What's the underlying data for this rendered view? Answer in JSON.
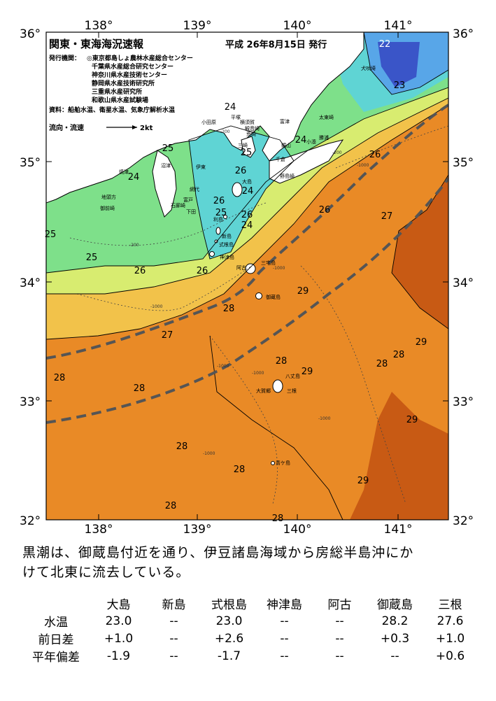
{
  "header": {
    "title": "関東・東海海況速報",
    "issue_date": "平成 26年8月15日 発行",
    "publisher_label": "発行機関：",
    "publishers": [
      "◎東京都島しょ農林水産総合センター",
      "千葉県水産総合研究センター",
      "神奈川県水産技術センター",
      "静岡県水産技術研究所",
      "三重県水産研究所",
      "和歌山県水産試験場"
    ],
    "data_sources": "資料：船舶水温、衛星水温、気象庁解析水温",
    "flow_legend_label": "流向・流速",
    "flow_legend_unit": "2kt"
  },
  "axes": {
    "lon_labels": [
      "138°",
      "139°",
      "140°",
      "141°"
    ],
    "lat_labels": [
      "36°",
      "35°",
      "34°",
      "33°",
      "32°"
    ]
  },
  "isotherm_labels": [
    "24",
    "25",
    "24",
    "26",
    "24",
    "25",
    "24",
    "26",
    "26",
    "25",
    "24",
    "26",
    "23",
    "26",
    "27",
    "25",
    "25",
    "26",
    "26",
    "28",
    "29",
    "27",
    "28",
    "28",
    "29",
    "28",
    "28",
    "29",
    "29",
    "28",
    "28",
    "29",
    "28",
    "22"
  ],
  "place_names": {
    "coast": [
      "小田原",
      "平塚",
      "横須賀",
      "観音崎",
      "荒崎",
      "富津",
      "三崎",
      "鋸山",
      "千倉",
      "野島崎",
      "小湊",
      "勝浦",
      "太東崎",
      "犬吠埼",
      "沼津",
      "伊東",
      "焼津",
      "網代",
      "下田",
      "石廊崎",
      "御前崎",
      "地頭方",
      "富戸"
    ],
    "islands": [
      "大島",
      "利島",
      "新島",
      "式根島",
      "神津島",
      "三宅島",
      "阿古",
      "御蔵島",
      "八丈島",
      "大賀郷",
      "三根",
      "青ケ島"
    ]
  },
  "depth_labels": [
    "-200",
    "-1000",
    "-200",
    "-1000",
    "-1000",
    "-1000",
    "-1000",
    "-1000",
    "-1000",
    "-200"
  ],
  "caption": {
    "line1": "黒潮は、御蔵島付近を通り、伊豆諸島海域から房総半島沖にか",
    "line2": "けて北東に流去している。"
  },
  "table": {
    "columns": [
      "大島",
      "新島",
      "式根島",
      "神津島",
      "阿古",
      "御蔵島",
      "三根"
    ],
    "rows": [
      {
        "label": "水温",
        "values": [
          "23.0",
          "--",
          "23.0",
          "--",
          "--",
          "28.2",
          "27.6"
        ]
      },
      {
        "label": "前日差",
        "values": [
          "+1.0",
          "--",
          "+2.6",
          "--",
          "--",
          "+0.3",
          "+1.0"
        ]
      },
      {
        "label": "平年偏差",
        "values": [
          "-1.9",
          "--",
          "-1.7",
          "--",
          "--",
          "--",
          "+0.6"
        ]
      }
    ]
  },
  "colors": {
    "temp_22": "#3a55c8",
    "temp_23": "#58a6e8",
    "temp_24": "#5fd4d4",
    "temp_25": "#7ee08a",
    "temp_26": "#d8ec70",
    "temp_27": "#f2c24a",
    "temp_28": "#e98a26",
    "temp_29": "#c85a14",
    "land": "#ffffff",
    "kuroshio_path": "#555555"
  }
}
